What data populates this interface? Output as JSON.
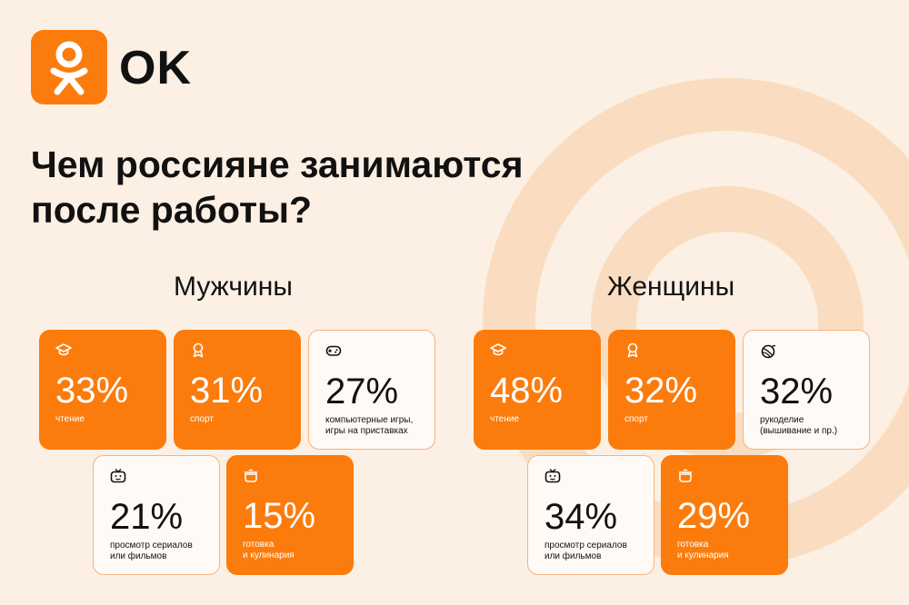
{
  "brand": {
    "logo_text": "OK",
    "accent": "#fb7c0c",
    "background": "#fcefe3"
  },
  "headline": "Чем россияне занимаются после работы?",
  "groups": [
    {
      "title": "Мужчины",
      "cards": [
        {
          "icon": "graduation-cap-icon",
          "value": "33%",
          "label": "чтение",
          "style": "filled"
        },
        {
          "icon": "medal-icon",
          "value": "31%",
          "label": "спорт",
          "style": "filled"
        },
        {
          "icon": "gamepad-icon",
          "value": "27%",
          "label": "компьютерные игры,\nигры на приставках",
          "style": "outline"
        },
        {
          "icon": "tv-icon",
          "value": "21%",
          "label": "просмотр сериалов\nили фильмов",
          "style": "outline"
        },
        {
          "icon": "cooking-pot-icon",
          "value": "15%",
          "label": "готовка\nи кулинария",
          "style": "filled"
        }
      ]
    },
    {
      "title": "Женщины",
      "cards": [
        {
          "icon": "graduation-cap-icon",
          "value": "48%",
          "label": "чтение",
          "style": "filled"
        },
        {
          "icon": "medal-icon",
          "value": "32%",
          "label": "спорт",
          "style": "filled"
        },
        {
          "icon": "yarn-ball-icon",
          "value": "32%",
          "label": "рукоделие\n(вышивание и пр.)",
          "style": "outline"
        },
        {
          "icon": "tv-icon",
          "value": "34%",
          "label": "просмотр сериалов\nили фильмов",
          "style": "outline"
        },
        {
          "icon": "cooking-pot-icon",
          "value": "29%",
          "label": "готовка\nи кулинария",
          "style": "filled"
        }
      ]
    }
  ]
}
